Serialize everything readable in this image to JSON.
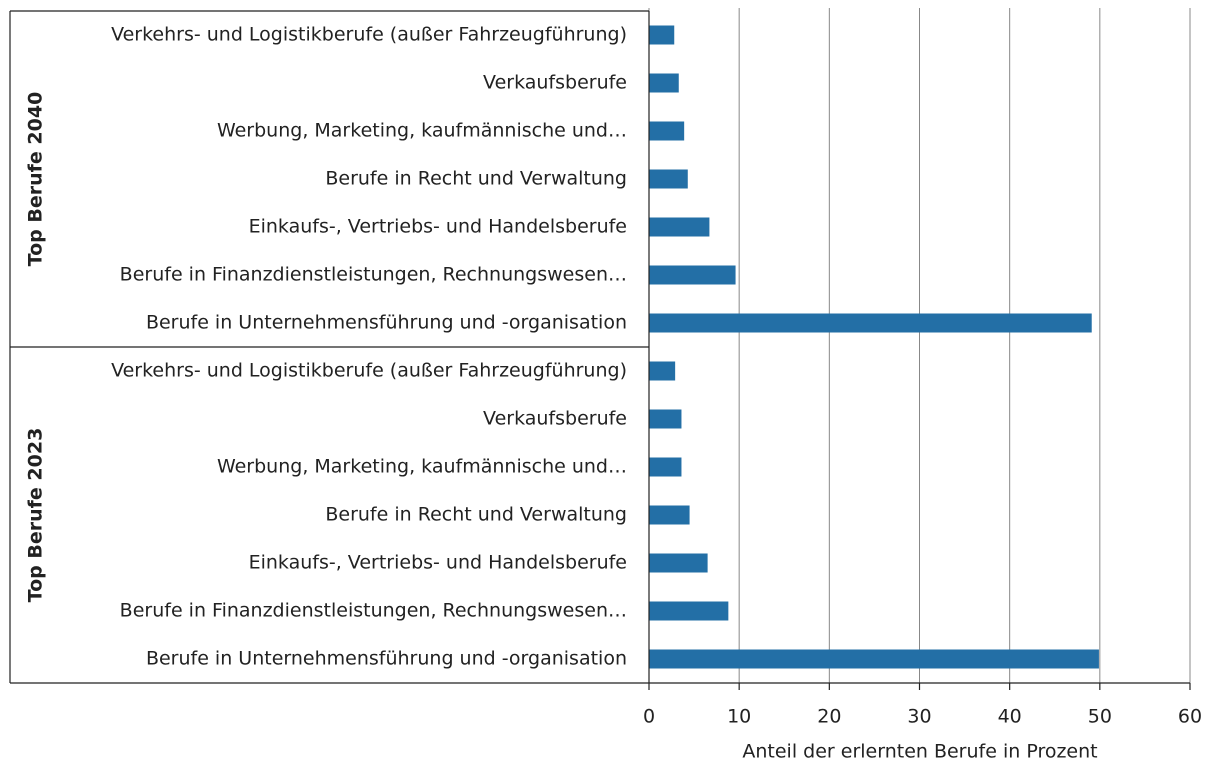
{
  "chart_data": {
    "type": "bar",
    "orientation": "horizontal",
    "x_label": "Anteil der erlernten Berufe in Prozent",
    "color": "#236fa6",
    "groups": [
      {
        "name": "Top Berufe 2040",
        "categories": [
          "Verkehrs- und Logistikberufe (außer Fahrzeugführung)",
          "Verkaufsberufe",
          "Werbung, Marketing, kaufmännische und…",
          "Berufe in Recht und Verwaltung",
          "Einkaufs-, Vertriebs- und Handelsberufe",
          "Berufe in Finanzdienstleistungen, Rechnungswesen…",
          "Berufe in Unternehmensführung und -organisation"
        ],
        "values": [
          2.8,
          3.3,
          3.9,
          4.3,
          6.7,
          9.6,
          49.1
        ]
      },
      {
        "name": "Top Berufe 2023",
        "categories": [
          "Verkehrs- und Logistikberufe (außer Fahrzeugführung)",
          "Verkaufsberufe",
          "Werbung, Marketing, kaufmännische und…",
          "Berufe in Recht und Verwaltung",
          "Einkaufs-, Vertriebs- und Handelsberufe",
          "Berufe in Finanzdienstleistungen, Rechnungswesen…",
          "Berufe in Unternehmensführung und -organisation"
        ],
        "values": [
          2.9,
          3.6,
          3.6,
          4.5,
          6.5,
          8.8,
          49.9
        ]
      }
    ],
    "xlim": [
      0,
      60
    ],
    "xticks": [
      0,
      10,
      20,
      30,
      40,
      50,
      60
    ],
    "grid": true
  }
}
